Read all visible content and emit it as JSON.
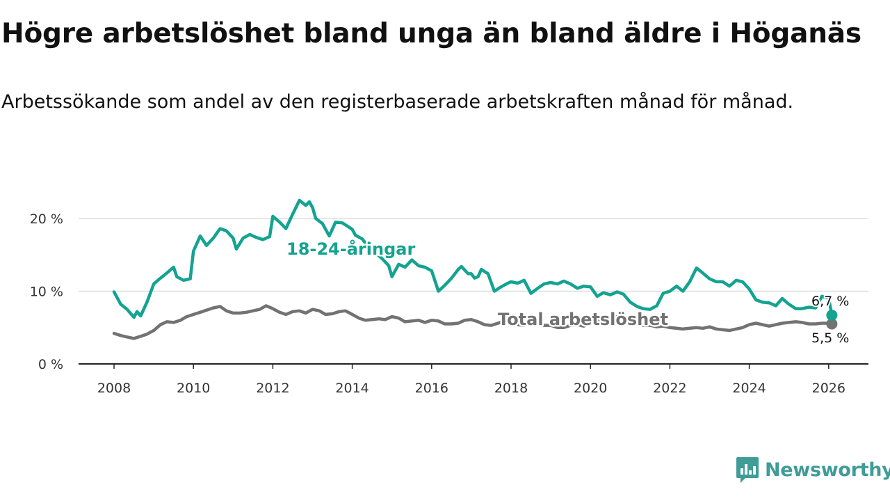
{
  "header": {
    "title": "Högre arbetslöshet bland unga än bland äldre i Höganäs",
    "subtitle": "Arbetssökande som andel av den registerbaserade arbetskraften månad för månad."
  },
  "brand": {
    "name": "Newsworthy",
    "icon": "newsworthy-logo-icon",
    "color": "#3f9c97"
  },
  "chart_data": {
    "type": "line",
    "title": "Högre arbetslöshet bland unga än bland äldre i Höganäs",
    "subtitle": "Arbetssökande som andel av den registerbaserade arbetskraften månad för månad.",
    "xlabel": "",
    "ylabel": "",
    "xlim": [
      2007.6,
      2026.9
    ],
    "ylim": [
      0,
      22.5
    ],
    "x_ticks": [
      2008,
      2010,
      2012,
      2014,
      2016,
      2018,
      2020,
      2022,
      2024,
      2026
    ],
    "x_tick_labels": [
      "2008",
      "2010",
      "2012",
      "2014",
      "2016",
      "2018",
      "2020",
      "2022",
      "2024",
      "2026"
    ],
    "y_ticks": [
      0,
      10,
      20
    ],
    "y_tick_labels": [
      "0 %",
      "10 %",
      "20 %"
    ],
    "grid": "horizontal",
    "legend": "inline labels",
    "series": [
      {
        "name": "18-24-åringar",
        "color": "#14a391",
        "end_label": "6,7 %",
        "points": [
          [
            2008.0,
            9.9
          ],
          [
            2008.17,
            8.2
          ],
          [
            2008.33,
            7.5
          ],
          [
            2008.5,
            6.4
          ],
          [
            2008.58,
            7.2
          ],
          [
            2008.67,
            6.6
          ],
          [
            2008.83,
            8.5
          ],
          [
            2009.0,
            11.0
          ],
          [
            2009.17,
            11.8
          ],
          [
            2009.33,
            12.5
          ],
          [
            2009.5,
            13.3
          ],
          [
            2009.58,
            12.0
          ],
          [
            2009.75,
            11.5
          ],
          [
            2009.92,
            11.7
          ],
          [
            2010.0,
            15.5
          ],
          [
            2010.17,
            17.6
          ],
          [
            2010.33,
            16.3
          ],
          [
            2010.5,
            17.3
          ],
          [
            2010.67,
            18.6
          ],
          [
            2010.83,
            18.3
          ],
          [
            2011.0,
            17.3
          ],
          [
            2011.08,
            15.8
          ],
          [
            2011.25,
            17.3
          ],
          [
            2011.42,
            17.8
          ],
          [
            2011.58,
            17.4
          ],
          [
            2011.75,
            17.1
          ],
          [
            2011.92,
            17.5
          ],
          [
            2012.0,
            20.3
          ],
          [
            2012.17,
            19.5
          ],
          [
            2012.33,
            18.6
          ],
          [
            2012.5,
            20.6
          ],
          [
            2012.67,
            22.5
          ],
          [
            2012.83,
            21.8
          ],
          [
            2012.92,
            22.3
          ],
          [
            2013.0,
            21.5
          ],
          [
            2013.08,
            20.0
          ],
          [
            2013.25,
            19.3
          ],
          [
            2013.42,
            17.6
          ],
          [
            2013.58,
            19.5
          ],
          [
            2013.75,
            19.4
          ],
          [
            2013.92,
            18.8
          ],
          [
            2014.0,
            18.5
          ],
          [
            2014.08,
            17.7
          ],
          [
            2014.25,
            17.2
          ],
          [
            2014.42,
            16.0
          ],
          [
            2014.58,
            15.3
          ],
          [
            2014.75,
            14.5
          ],
          [
            2014.92,
            13.5
          ],
          [
            2015.0,
            12.0
          ],
          [
            2015.17,
            13.7
          ],
          [
            2015.33,
            13.3
          ],
          [
            2015.5,
            14.3
          ],
          [
            2015.67,
            13.5
          ],
          [
            2015.83,
            13.3
          ],
          [
            2016.0,
            12.8
          ],
          [
            2016.17,
            10.0
          ],
          [
            2016.33,
            10.8
          ],
          [
            2016.5,
            11.8
          ],
          [
            2016.67,
            13.0
          ],
          [
            2016.75,
            13.4
          ],
          [
            2016.92,
            12.4
          ],
          [
            2017.0,
            12.4
          ],
          [
            2017.08,
            11.8
          ],
          [
            2017.17,
            12.0
          ],
          [
            2017.25,
            13.0
          ],
          [
            2017.42,
            12.4
          ],
          [
            2017.58,
            10.0
          ],
          [
            2017.75,
            10.6
          ],
          [
            2017.92,
            11.1
          ],
          [
            2018.0,
            11.3
          ],
          [
            2018.17,
            11.1
          ],
          [
            2018.33,
            11.5
          ],
          [
            2018.5,
            9.7
          ],
          [
            2018.67,
            10.4
          ],
          [
            2018.83,
            11.0
          ],
          [
            2019.0,
            11.2
          ],
          [
            2019.17,
            11.0
          ],
          [
            2019.33,
            11.4
          ],
          [
            2019.5,
            11.0
          ],
          [
            2019.67,
            10.4
          ],
          [
            2019.83,
            10.7
          ],
          [
            2020.0,
            10.6
          ],
          [
            2020.17,
            9.3
          ],
          [
            2020.33,
            9.8
          ],
          [
            2020.5,
            9.5
          ],
          [
            2020.67,
            9.9
          ],
          [
            2020.83,
            9.6
          ],
          [
            2021.0,
            8.5
          ],
          [
            2021.17,
            7.9
          ],
          [
            2021.33,
            7.6
          ],
          [
            2021.5,
            7.5
          ],
          [
            2021.67,
            8.0
          ],
          [
            2021.83,
            9.7
          ],
          [
            2022.0,
            10.0
          ],
          [
            2022.17,
            10.7
          ],
          [
            2022.33,
            10.0
          ],
          [
            2022.5,
            11.3
          ],
          [
            2022.67,
            13.2
          ],
          [
            2022.83,
            12.5
          ],
          [
            2023.0,
            11.7
          ],
          [
            2023.17,
            11.3
          ],
          [
            2023.33,
            11.3
          ],
          [
            2023.5,
            10.7
          ],
          [
            2023.67,
            11.5
          ],
          [
            2023.83,
            11.3
          ],
          [
            2024.0,
            10.3
          ],
          [
            2024.17,
            8.8
          ],
          [
            2024.33,
            8.5
          ],
          [
            2024.5,
            8.4
          ],
          [
            2024.67,
            8.0
          ],
          [
            2024.83,
            9.0
          ],
          [
            2025.0,
            8.2
          ],
          [
            2025.17,
            7.6
          ],
          [
            2025.33,
            7.6
          ],
          [
            2025.5,
            7.8
          ],
          [
            2025.67,
            7.7
          ],
          [
            2025.83,
            9.3
          ],
          [
            2026.0,
            9.0
          ],
          [
            2026.08,
            6.7
          ]
        ]
      },
      {
        "name": "Total arbetslöshet",
        "color": "#727272",
        "end_label": "5,5 %",
        "points": [
          [
            2008.0,
            4.2
          ],
          [
            2008.17,
            3.9
          ],
          [
            2008.33,
            3.7
          ],
          [
            2008.5,
            3.5
          ],
          [
            2008.67,
            3.8
          ],
          [
            2008.83,
            4.1
          ],
          [
            2009.0,
            4.6
          ],
          [
            2009.17,
            5.4
          ],
          [
            2009.33,
            5.8
          ],
          [
            2009.5,
            5.7
          ],
          [
            2009.67,
            6.0
          ],
          [
            2009.83,
            6.5
          ],
          [
            2010.0,
            6.8
          ],
          [
            2010.17,
            7.1
          ],
          [
            2010.33,
            7.4
          ],
          [
            2010.5,
            7.7
          ],
          [
            2010.67,
            7.9
          ],
          [
            2010.83,
            7.3
          ],
          [
            2011.0,
            7.0
          ],
          [
            2011.17,
            7.0
          ],
          [
            2011.33,
            7.1
          ],
          [
            2011.5,
            7.3
          ],
          [
            2011.67,
            7.5
          ],
          [
            2011.83,
            8.0
          ],
          [
            2012.0,
            7.6
          ],
          [
            2012.17,
            7.1
          ],
          [
            2012.33,
            6.8
          ],
          [
            2012.5,
            7.2
          ],
          [
            2012.67,
            7.3
          ],
          [
            2012.83,
            7.0
          ],
          [
            2013.0,
            7.5
          ],
          [
            2013.17,
            7.3
          ],
          [
            2013.33,
            6.8
          ],
          [
            2013.5,
            6.9
          ],
          [
            2013.67,
            7.2
          ],
          [
            2013.83,
            7.3
          ],
          [
            2014.0,
            6.8
          ],
          [
            2014.17,
            6.3
          ],
          [
            2014.33,
            6.0
          ],
          [
            2014.5,
            6.1
          ],
          [
            2014.67,
            6.2
          ],
          [
            2014.83,
            6.1
          ],
          [
            2015.0,
            6.5
          ],
          [
            2015.17,
            6.3
          ],
          [
            2015.33,
            5.8
          ],
          [
            2015.5,
            5.9
          ],
          [
            2015.67,
            6.0
          ],
          [
            2015.83,
            5.7
          ],
          [
            2016.0,
            6.0
          ],
          [
            2016.17,
            5.9
          ],
          [
            2016.33,
            5.5
          ],
          [
            2016.5,
            5.5
          ],
          [
            2016.67,
            5.6
          ],
          [
            2016.83,
            6.0
          ],
          [
            2017.0,
            6.1
          ],
          [
            2017.17,
            5.8
          ],
          [
            2017.33,
            5.4
          ],
          [
            2017.5,
            5.3
          ],
          [
            2017.67,
            5.6
          ],
          [
            2017.83,
            5.9
          ],
          [
            2018.0,
            5.7
          ],
          [
            2018.17,
            5.4
          ],
          [
            2018.33,
            5.3
          ],
          [
            2018.5,
            5.6
          ],
          [
            2018.67,
            5.5
          ],
          [
            2018.83,
            5.3
          ],
          [
            2019.0,
            5.3
          ],
          [
            2019.17,
            5.0
          ],
          [
            2019.33,
            5.0
          ],
          [
            2019.5,
            5.3
          ],
          [
            2019.67,
            5.4
          ],
          [
            2019.83,
            5.2
          ],
          [
            2020.0,
            5.6
          ],
          [
            2020.17,
            5.9
          ],
          [
            2020.33,
            6.2
          ],
          [
            2020.5,
            6.4
          ],
          [
            2020.67,
            6.5
          ],
          [
            2020.83,
            6.3
          ],
          [
            2021.0,
            6.0
          ],
          [
            2021.17,
            5.6
          ],
          [
            2021.33,
            5.3
          ],
          [
            2021.5,
            5.3
          ],
          [
            2021.67,
            5.1
          ],
          [
            2021.83,
            5.2
          ],
          [
            2022.0,
            5.0
          ],
          [
            2022.17,
            4.9
          ],
          [
            2022.33,
            4.8
          ],
          [
            2022.5,
            4.9
          ],
          [
            2022.67,
            5.0
          ],
          [
            2022.83,
            4.9
          ],
          [
            2023.0,
            5.1
          ],
          [
            2023.17,
            4.8
          ],
          [
            2023.33,
            4.7
          ],
          [
            2023.5,
            4.6
          ],
          [
            2023.67,
            4.8
          ],
          [
            2023.83,
            5.0
          ],
          [
            2024.0,
            5.4
          ],
          [
            2024.17,
            5.6
          ],
          [
            2024.33,
            5.4
          ],
          [
            2024.5,
            5.2
          ],
          [
            2024.67,
            5.4
          ],
          [
            2024.83,
            5.6
          ],
          [
            2025.0,
            5.7
          ],
          [
            2025.17,
            5.8
          ],
          [
            2025.33,
            5.7
          ],
          [
            2025.5,
            5.5
          ],
          [
            2025.67,
            5.5
          ],
          [
            2025.83,
            5.6
          ],
          [
            2026.0,
            5.6
          ],
          [
            2026.08,
            5.5
          ]
        ]
      }
    ]
  }
}
